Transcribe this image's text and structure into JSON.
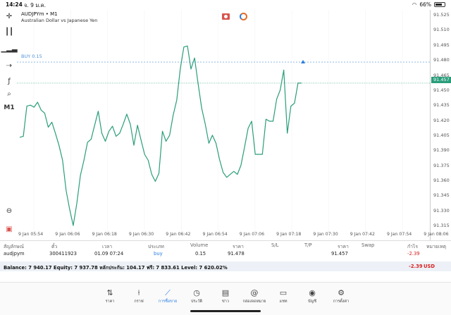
{
  "status_bar": {
    "time": "14:24",
    "date": "จ. 9 ม.ค.",
    "battery": "66%"
  },
  "toolbar": {
    "timeframe": "M1"
  },
  "chart": {
    "symbol_line": "AUDJPYm • M1",
    "symbol_code": "AUDJPYm",
    "timeframe_suffix": " • M1",
    "description": "Australian Dollar vs Japanese Yen",
    "buy_label": "BUY 0.15",
    "current_price": "91.457",
    "line_color": "#2a9d7a",
    "buy_line_color": "#4a90d9"
  },
  "chart_data": {
    "type": "line",
    "title": "",
    "xlabel": "",
    "ylabel": "",
    "ylim": [
      91.308,
      91.53
    ],
    "y_ticks": [
      "91.525",
      "91.510",
      "91.495",
      "91.480",
      "91.465",
      "91.450",
      "91.435",
      "91.420",
      "91.405",
      "91.390",
      "91.375",
      "91.360",
      "91.345",
      "91.330",
      "91.315"
    ],
    "x_ticks": [
      "9 Jan 05:54",
      "9 Jan 06:06",
      "9 Jan 06:18",
      "9 Jan 06:30",
      "9 Jan 06:42",
      "9 Jan 06:54",
      "9 Jan 07:06",
      "9 Jan 07:18",
      "9 Jan 07:30",
      "9 Jan 07:42",
      "9 Jan 07:54",
      "9 Jan 08:06"
    ],
    "buy_level": 91.478,
    "last_price": 91.457,
    "series": [
      {
        "values": [
          91.403,
          91.404,
          91.434,
          91.435,
          91.433,
          91.438,
          91.43,
          91.427,
          91.413,
          91.418,
          91.407,
          91.395,
          91.38,
          91.35,
          91.331,
          91.315,
          91.337,
          91.365,
          91.38,
          91.398,
          91.401,
          91.415,
          91.429,
          91.407,
          91.399,
          91.409,
          91.414,
          91.404,
          91.407,
          91.416,
          91.426,
          91.416,
          91.395,
          91.415,
          91.4,
          91.386,
          91.38,
          91.366,
          91.359,
          91.367,
          91.409,
          91.399,
          91.405,
          91.425,
          91.44,
          91.471,
          91.493,
          91.494,
          91.471,
          91.482,
          91.456,
          91.432,
          91.416,
          91.397,
          91.405,
          91.397,
          91.381,
          91.368,
          91.363,
          91.366,
          91.369,
          91.366,
          91.375,
          91.393,
          91.412,
          91.419,
          91.386,
          91.386,
          91.386,
          91.421,
          91.419,
          91.419,
          91.441,
          91.45,
          91.47,
          91.407,
          91.434,
          91.437,
          91.457,
          91.457
        ]
      }
    ]
  },
  "table": {
    "headers": [
      "สัญลักษณ์",
      "ตั๋ว",
      "เวลา",
      "ประเภท",
      "Volume",
      "ราคา",
      "S/L",
      "T/P",
      "ราคา",
      "Swap",
      "กำไร",
      "หมายเหตุ"
    ],
    "row": {
      "symbol": "audjpym",
      "ticket": "300411923",
      "time": "01.09 07:24",
      "type": "buy",
      "volume": "0.15",
      "open_price": "91.478",
      "sl": "",
      "tp": "",
      "price": "91.457",
      "swap": "",
      "profit": "-2.39",
      "comment": ""
    },
    "balance_text": "Balance: 7 940.17 Equity: 7 937.78 หลักประกัน: 104.17 ฟรี: 7 833.61 Level: 7 620.02%",
    "balance_profit": "-2.39",
    "currency": "USD"
  },
  "tabs": [
    {
      "label": "ราคา",
      "icon": "quotes-icon"
    },
    {
      "label": "กราฟ",
      "icon": "chart-icon"
    },
    {
      "label": "การซื้อขาย",
      "icon": "trade-icon",
      "active": true
    },
    {
      "label": "ประวัติ",
      "icon": "history-icon"
    },
    {
      "label": "ข่าว",
      "icon": "news-icon"
    },
    {
      "label": "กล่องจดหมาย",
      "icon": "mailbox-icon"
    },
    {
      "label": "แชท",
      "icon": "chat-icon"
    },
    {
      "label": "บัญชี",
      "icon": "account-icon"
    },
    {
      "label": "การตั้งค่า",
      "icon": "settings-icon"
    }
  ]
}
